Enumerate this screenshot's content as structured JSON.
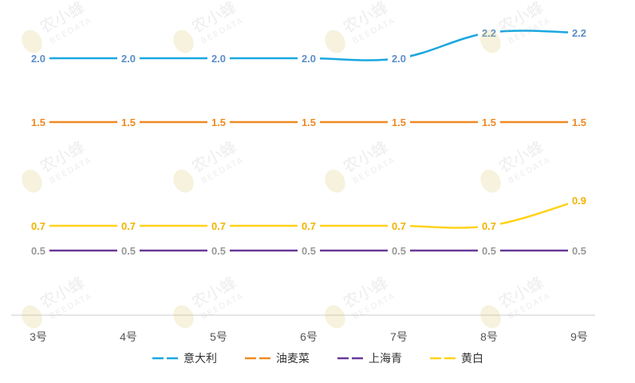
{
  "chart_data": {
    "type": "line",
    "categories": [
      "3号",
      "4号",
      "5号",
      "6号",
      "7号",
      "8号",
      "9号"
    ],
    "series": [
      {
        "name": "意大利",
        "color": "#1aa7e0",
        "label_color": "#5b8ec9",
        "values": [
          2.0,
          2.0,
          2.0,
          2.0,
          2.0,
          2.2,
          2.2
        ]
      },
      {
        "name": "油麦菜",
        "color": "#f08a24",
        "label_color": "#f08a24",
        "values": [
          1.5,
          1.5,
          1.5,
          1.5,
          1.5,
          1.5,
          1.5
        ]
      },
      {
        "name": "上海青",
        "color": "#6a3a9a",
        "label_color": "#999999",
        "values": [
          0.5,
          0.5,
          0.5,
          0.5,
          0.5,
          0.5,
          0.5
        ]
      },
      {
        "name": "黄白",
        "color": "#ffd31a",
        "label_color": "#f0b400",
        "values": [
          0.7,
          0.7,
          0.7,
          0.7,
          0.7,
          0.7,
          0.9
        ]
      }
    ],
    "value_labels": [
      [
        "2.0",
        "2.0",
        "2.0",
        "2.0",
        "2.0",
        "2.2",
        "2.2"
      ],
      [
        "1.5",
        "1.5",
        "1.5",
        "1.5",
        "1.5",
        "1.5",
        "1.5"
      ],
      [
        "0.5",
        "0.5",
        "0.5",
        "0.5",
        "0.5",
        "0.5",
        "0.5"
      ],
      [
        "0.7",
        "0.7",
        "0.7",
        "0.7",
        "0.7",
        "0.7",
        "0.9"
      ]
    ],
    "ylim": [
      0,
      2.2
    ],
    "grid": false,
    "legend": "bottom",
    "smooth": true
  },
  "watermark": {
    "text": "农小蜂",
    "subtext": "BEEDATA",
    "icon": "bee-icon"
  }
}
